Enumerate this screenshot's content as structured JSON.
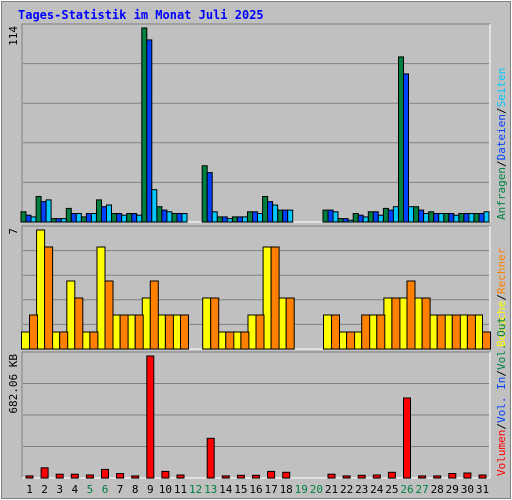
{
  "chart_data": [
    {
      "type": "bar",
      "title": "Tages-Statistik im Monat Juli 2025",
      "ymax_label": "114",
      "ylim": [
        0,
        114
      ],
      "categories": [
        "1",
        "2",
        "3",
        "4",
        "5",
        "6",
        "7",
        "8",
        "9",
        "10",
        "11",
        "12",
        "13",
        "14",
        "15",
        "16",
        "17",
        "18",
        "19",
        "20",
        "21",
        "22",
        "23",
        "24",
        "25",
        "26",
        "27",
        "28",
        "29",
        "30",
        "31"
      ],
      "weekend_days": [
        "5",
        "6",
        "12",
        "13",
        "19",
        "20",
        "26",
        "27"
      ],
      "legend_labels": [
        "Anfragen",
        "Dateien",
        "Seiten"
      ],
      "legend_separator": "/",
      "series": [
        {
          "name": "Anfragen",
          "color": "#008040",
          "values": [
            6,
            15,
            2,
            8,
            3,
            13,
            5,
            5,
            114,
            9,
            5,
            0,
            33,
            3,
            3,
            6,
            15,
            7,
            0,
            0,
            7,
            2,
            5,
            6,
            8,
            97,
            9,
            6,
            5,
            5,
            5
          ]
        },
        {
          "name": "Dateien",
          "color": "#0040ff",
          "values": [
            4,
            12,
            2,
            5,
            5,
            9,
            5,
            5,
            107,
            7,
            5,
            0,
            29,
            3,
            3,
            6,
            12,
            7,
            0,
            0,
            7,
            2,
            4,
            6,
            7,
            87,
            7,
            5,
            5,
            5,
            5
          ]
        },
        {
          "name": "Seiten",
          "color": "#00c8ff",
          "values": [
            3,
            13,
            2,
            5,
            5,
            10,
            4,
            4,
            19,
            6,
            5,
            0,
            6,
            2,
            3,
            5,
            10,
            7,
            0,
            0,
            6,
            1,
            3,
            4,
            9,
            9,
            5,
            5,
            4,
            5,
            6
          ]
        }
      ]
    },
    {
      "type": "bar",
      "ymax_label": "7",
      "ylim": [
        0,
        7
      ],
      "categories": [
        "1",
        "2",
        "3",
        "4",
        "5",
        "6",
        "7",
        "8",
        "9",
        "10",
        "11",
        "12",
        "13",
        "14",
        "15",
        "16",
        "17",
        "18",
        "19",
        "20",
        "21",
        "22",
        "23",
        "24",
        "25",
        "26",
        "27",
        "28",
        "29",
        "30",
        "31"
      ],
      "legend_labels": [
        "Besuche",
        "Rechner"
      ],
      "legend_separator": "/",
      "series": [
        {
          "name": "Besuche",
          "color": "#ffff00",
          "values": [
            1,
            7,
            1,
            4,
            1,
            6,
            2,
            2,
            3,
            2,
            2,
            0,
            3,
            1,
            1,
            2,
            6,
            3,
            0,
            0,
            2,
            1,
            1,
            2,
            3,
            3,
            3,
            2,
            2,
            2,
            2
          ]
        },
        {
          "name": "Rechner",
          "color": "#ff8000",
          "values": [
            2,
            6,
            1,
            3,
            1,
            4,
            2,
            2,
            4,
            2,
            2,
            0,
            3,
            1,
            1,
            2,
            6,
            3,
            0,
            0,
            2,
            1,
            2,
            2,
            3,
            4,
            3,
            2,
            2,
            2,
            1
          ]
        }
      ]
    },
    {
      "type": "bar",
      "ymax_label": "682.06 KB",
      "ylim": [
        0,
        682.06
      ],
      "categories": [
        "1",
        "2",
        "3",
        "4",
        "5",
        "6",
        "7",
        "8",
        "9",
        "10",
        "11",
        "12",
        "13",
        "14",
        "15",
        "16",
        "17",
        "18",
        "19",
        "20",
        "21",
        "22",
        "23",
        "24",
        "25",
        "26",
        "27",
        "28",
        "29",
        "30",
        "31"
      ],
      "legend_labels": [
        "Volumen",
        "Vol. In",
        "Vol. Out"
      ],
      "legend_separator": "/",
      "series": [
        {
          "name": "Volumen",
          "color": "#ff0000",
          "values": [
            12,
            57,
            21,
            21,
            17,
            48,
            25,
            12,
            682,
            37,
            17,
            0,
            222,
            12,
            15,
            15,
            37,
            32,
            0,
            0,
            21,
            12,
            15,
            17,
            32,
            447,
            12,
            12,
            25,
            28,
            17
          ]
        }
      ]
    }
  ]
}
